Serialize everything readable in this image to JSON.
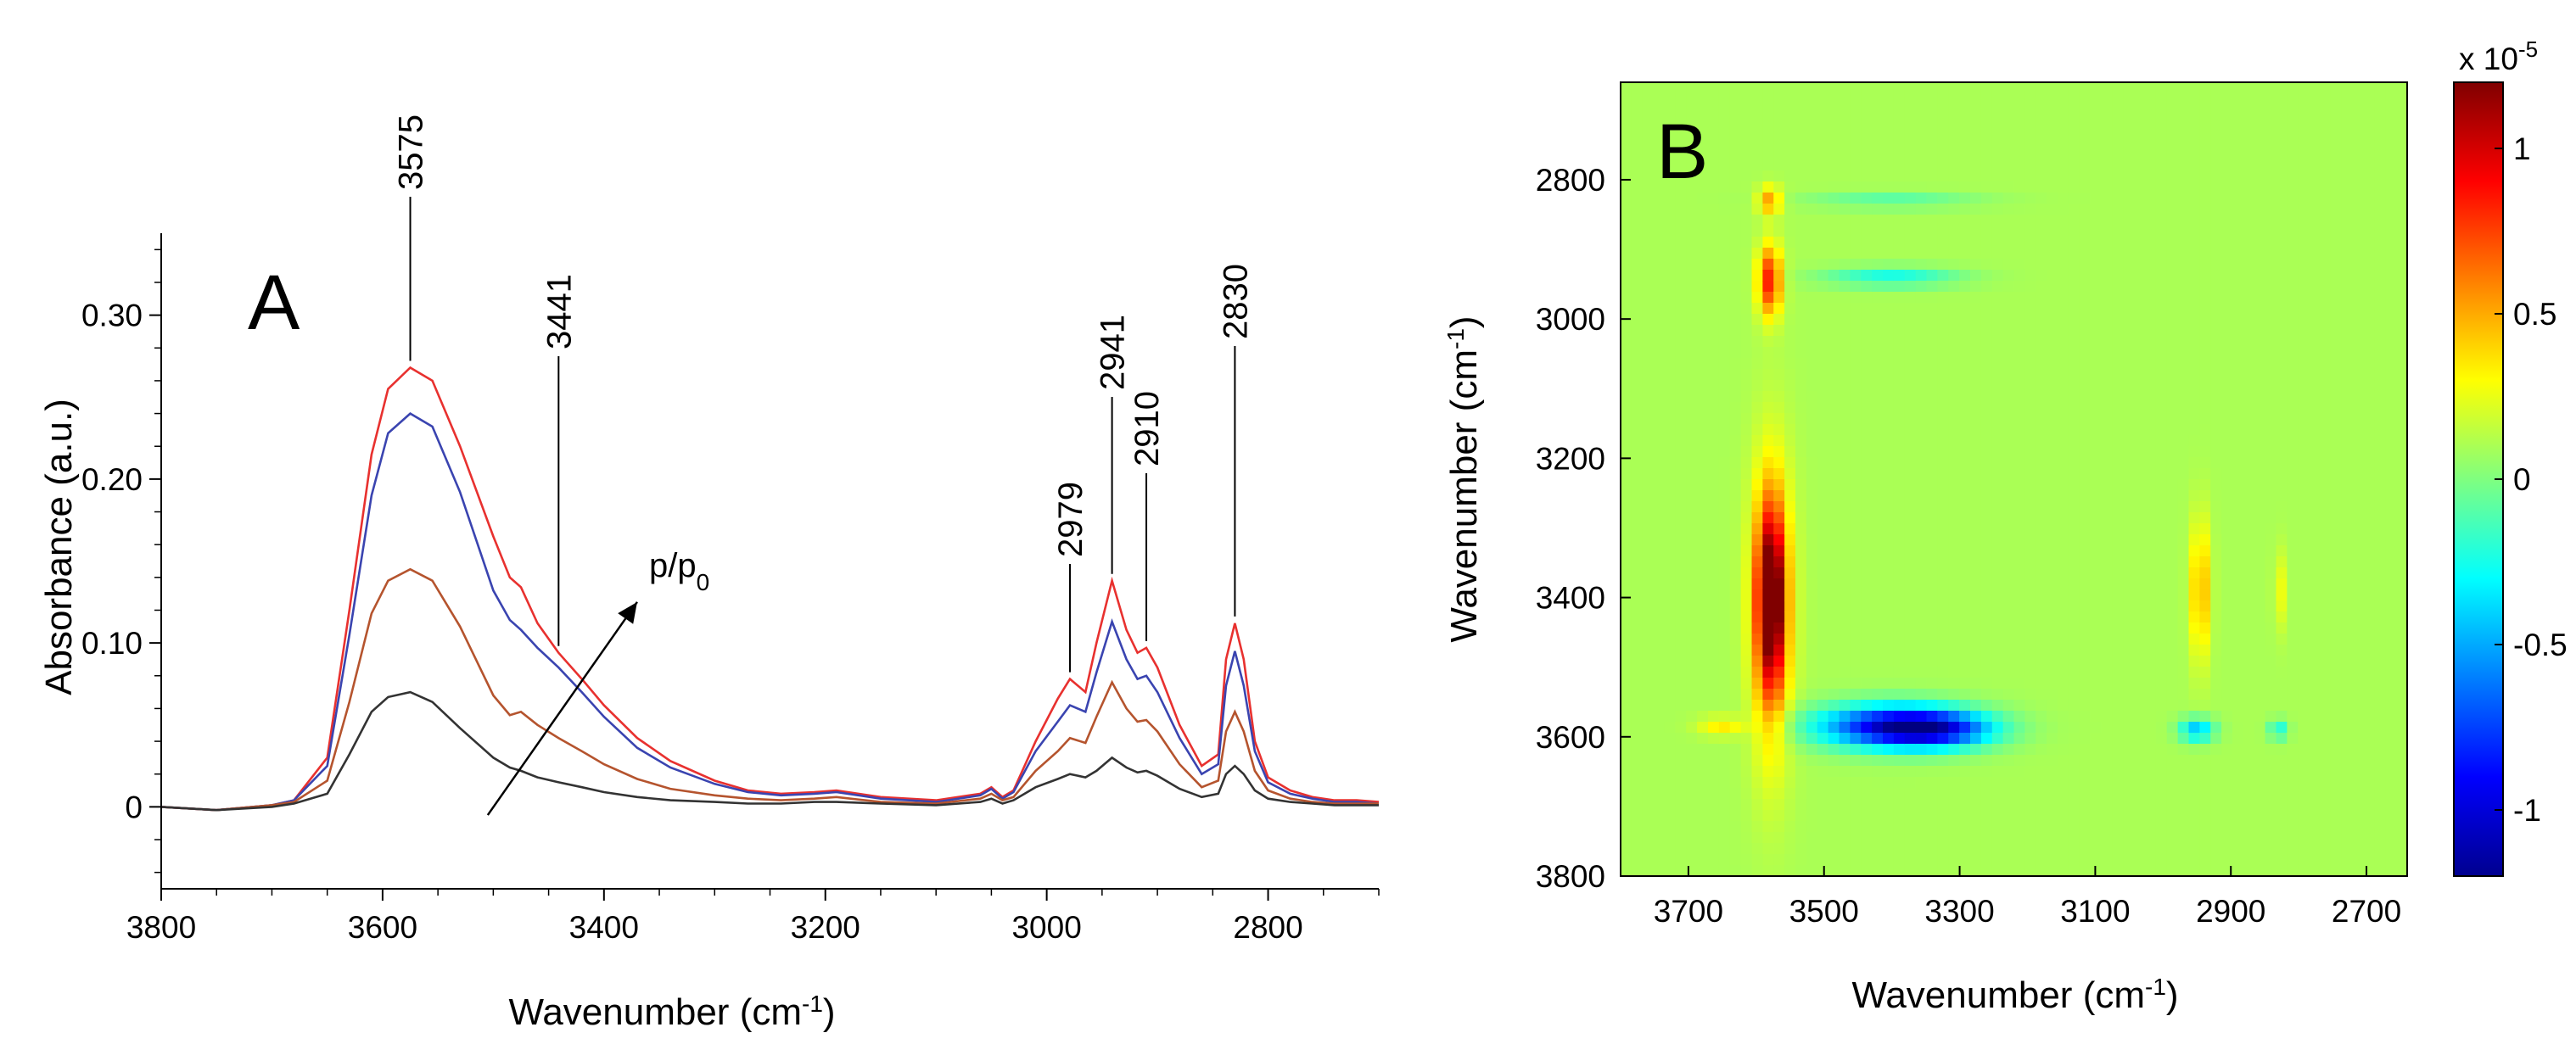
{
  "chart_data": [
    {
      "type": "line",
      "panel_label": "A",
      "xlabel": "Wavenumber (cm",
      "xlabel_sup": "-1",
      "xlabel_end": ")",
      "ylabel": "Absorbance (a.u.)",
      "xlim": [
        3800,
        2700
      ],
      "ylim": [
        -0.05,
        0.35
      ],
      "x_reversed": true,
      "xticks": [
        3800,
        3600,
        3400,
        3200,
        3000,
        2800
      ],
      "xtick_labels": [
        "3800",
        "3600",
        "3400",
        "3200",
        "3000",
        "2800"
      ],
      "yticks": [
        0,
        0.1,
        0.2,
        0.3
      ],
      "ytick_labels": [
        "0",
        "0.10",
        "0.20",
        "0.30"
      ],
      "annotations": [
        {
          "text": "3575",
          "x": 3575
        },
        {
          "text": "3441",
          "x": 3441
        },
        {
          "text": "2979",
          "x": 2979
        },
        {
          "text": "2941",
          "x": 2941
        },
        {
          "text": "2910",
          "x": 2910
        },
        {
          "text": "2830",
          "x": 2830
        }
      ],
      "arrow_label": "p/p",
      "arrow_label_sub": "0",
      "arrow_from": {
        "x": 3505,
        "y": -0.005
      },
      "arrow_to": {
        "x": 3370,
        "y": 0.125
      },
      "x": [
        3800,
        3750,
        3700,
        3680,
        3650,
        3630,
        3610,
        3595,
        3575,
        3555,
        3530,
        3500,
        3485,
        3475,
        3460,
        3441,
        3420,
        3400,
        3370,
        3340,
        3300,
        3270,
        3240,
        3210,
        3190,
        3150,
        3100,
        3060,
        3050,
        3040,
        3030,
        3010,
        2990,
        2979,
        2965,
        2955,
        2941,
        2928,
        2918,
        2910,
        2900,
        2880,
        2860,
        2845,
        2838,
        2830,
        2822,
        2812,
        2800,
        2780,
        2760,
        2740,
        2720,
        2700
      ],
      "series": [
        {
          "color": "#e8312f",
          "values": [
            0.0,
            -0.002,
            0.001,
            0.004,
            0.03,
            0.12,
            0.215,
            0.255,
            0.268,
            0.26,
            0.22,
            0.165,
            0.14,
            0.134,
            0.112,
            0.094,
            0.078,
            0.062,
            0.042,
            0.028,
            0.016,
            0.01,
            0.008,
            0.009,
            0.01,
            0.006,
            0.004,
            0.008,
            0.012,
            0.006,
            0.01,
            0.04,
            0.066,
            0.078,
            0.07,
            0.1,
            0.138,
            0.108,
            0.094,
            0.097,
            0.085,
            0.05,
            0.025,
            0.032,
            0.09,
            0.112,
            0.09,
            0.04,
            0.018,
            0.01,
            0.006,
            0.004,
            0.004,
            0.003
          ]
        },
        {
          "color": "#3a44b0",
          "values": [
            0.0,
            -0.002,
            0.001,
            0.004,
            0.025,
            0.105,
            0.19,
            0.228,
            0.24,
            0.232,
            0.192,
            0.132,
            0.114,
            0.108,
            0.097,
            0.085,
            0.07,
            0.055,
            0.036,
            0.024,
            0.014,
            0.009,
            0.007,
            0.008,
            0.009,
            0.005,
            0.003,
            0.007,
            0.011,
            0.005,
            0.009,
            0.034,
            0.052,
            0.062,
            0.058,
            0.082,
            0.113,
            0.09,
            0.078,
            0.08,
            0.07,
            0.042,
            0.02,
            0.026,
            0.074,
            0.095,
            0.074,
            0.034,
            0.015,
            0.008,
            0.005,
            0.003,
            0.003,
            0.002
          ]
        },
        {
          "color": "#b5542e",
          "values": [
            0.0,
            -0.002,
            0.001,
            0.003,
            0.016,
            0.064,
            0.118,
            0.138,
            0.145,
            0.138,
            0.11,
            0.068,
            0.056,
            0.058,
            0.05,
            0.042,
            0.034,
            0.026,
            0.017,
            0.011,
            0.007,
            0.005,
            0.004,
            0.005,
            0.006,
            0.003,
            0.002,
            0.005,
            0.008,
            0.004,
            0.006,
            0.022,
            0.034,
            0.042,
            0.039,
            0.055,
            0.076,
            0.06,
            0.052,
            0.053,
            0.046,
            0.026,
            0.012,
            0.016,
            0.046,
            0.058,
            0.046,
            0.022,
            0.01,
            0.005,
            0.003,
            0.002,
            0.002,
            0.002
          ]
        },
        {
          "color": "#333333",
          "values": [
            0.0,
            -0.002,
            0.0,
            0.002,
            0.008,
            0.032,
            0.058,
            0.067,
            0.07,
            0.064,
            0.048,
            0.03,
            0.024,
            0.022,
            0.018,
            0.015,
            0.012,
            0.009,
            0.006,
            0.004,
            0.003,
            0.002,
            0.002,
            0.003,
            0.003,
            0.002,
            0.001,
            0.003,
            0.005,
            0.002,
            0.004,
            0.012,
            0.017,
            0.02,
            0.018,
            0.022,
            0.03,
            0.024,
            0.021,
            0.022,
            0.019,
            0.011,
            0.006,
            0.008,
            0.02,
            0.025,
            0.02,
            0.01,
            0.005,
            0.003,
            0.002,
            0.001,
            0.001,
            0.001
          ]
        }
      ]
    },
    {
      "type": "heatmap",
      "panel_label": "B",
      "xlabel": "Wavenumber (cm",
      "xlabel_sup": "-1",
      "xlabel_end": ")",
      "ylabel": "Wavenumber (cm",
      "ylabel_sup": "-1",
      "ylabel_end": ")",
      "xlim": [
        3800,
        2640
      ],
      "ylim": [
        2660,
        3800
      ],
      "xticks": [
        3700,
        3500,
        3300,
        3100,
        2900,
        2700
      ],
      "xtick_labels": [
        "3700",
        "3500",
        "3300",
        "3100",
        "2900",
        "2700"
      ],
      "yticks": [
        2800,
        3000,
        3200,
        3400,
        3600,
        3800
      ],
      "ytick_labels": [
        "2800",
        "3000",
        "3200",
        "3400",
        "3600",
        "3800"
      ],
      "colorbar": {
        "range": [
          -1.2,
          1.2
        ],
        "ticks": [
          1,
          0.5,
          0,
          -0.5,
          -1
        ],
        "tick_labels": [
          "1",
          "0.5",
          "0",
          "-0.5",
          "-1"
        ],
        "multiplier": "x 10",
        "multiplier_exp": "-5",
        "colormap": "jet"
      },
      "background_value": 0.1,
      "features": [
        {
          "x": 3578,
          "y": 3400,
          "sx": 14,
          "sy": 90,
          "value": 1.05
        },
        {
          "x": 3578,
          "y": 3420,
          "sx": 22,
          "sy": 150,
          "value": 0.45
        },
        {
          "x": 3580,
          "y": 2945,
          "sx": 12,
          "sy": 35,
          "value": 0.75
        },
        {
          "x": 3580,
          "y": 2830,
          "sx": 12,
          "sy": 14,
          "value": 0.45
        },
        {
          "x": 3400,
          "y": 3585,
          "sx": 80,
          "sy": 22,
          "value": -1.0
        },
        {
          "x": 3330,
          "y": 3590,
          "sx": 60,
          "sy": 18,
          "value": -0.6
        },
        {
          "x": 3400,
          "y": 2940,
          "sx": 70,
          "sy": 10,
          "value": -0.35
        },
        {
          "x": 3400,
          "y": 2830,
          "sx": 90,
          "sy": 8,
          "value": -0.2
        },
        {
          "x": 2945,
          "y": 3390,
          "sx": 10,
          "sy": 70,
          "value": 0.4
        },
        {
          "x": 2830,
          "y": 3390,
          "sx": 5,
          "sy": 40,
          "value": 0.25
        },
        {
          "x": 2950,
          "y": 3590,
          "sx": 18,
          "sy": 12,
          "value": -0.55
        },
        {
          "x": 2830,
          "y": 3590,
          "sx": 10,
          "sy": 10,
          "value": -0.35
        },
        {
          "x": 3650,
          "y": 3585,
          "sx": 25,
          "sy": 10,
          "value": 0.25
        }
      ]
    }
  ]
}
